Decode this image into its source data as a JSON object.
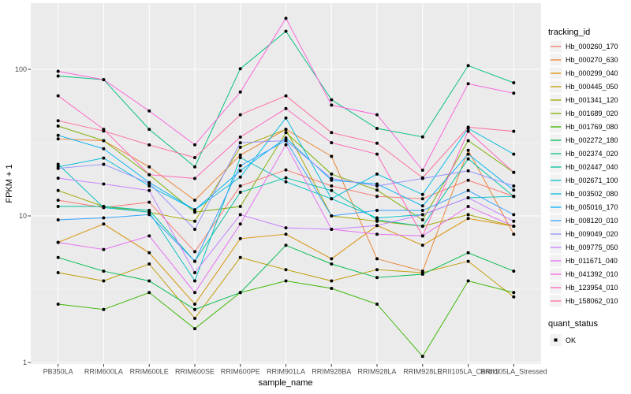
{
  "chart_data": {
    "type": "line",
    "title": "",
    "xlabel": "sample_name",
    "ylabel": "FPKM + 1",
    "yscale": "log10",
    "ylim": [
      1,
      280
    ],
    "ytick_values": [
      1,
      10,
      100
    ],
    "ytick_labels": [
      "1",
      "10",
      "100"
    ],
    "grid": "on",
    "panel_bg": "#EBEBEB",
    "grid_color": "#FFFFFF",
    "point_color": "#000000",
    "legend": {
      "title": "tracking_id",
      "position": "right"
    },
    "quant_legend": {
      "title": "quant_status",
      "items": [
        {
          "label": "OK",
          "marker": "black-point"
        }
      ]
    },
    "categories": [
      "PB350LA",
      "RRIM600LA",
      "RRIM600LE",
      "RRIM600SE",
      "RRIM600PE",
      "RRIM901LA",
      "RRIM928BA",
      "RRIM928LA",
      "RRIM928LE",
      "RRII105LA_Control",
      "RRII105LA_Stressed"
    ],
    "series": [
      {
        "name": "Hb_000260_170",
        "color": "#F8766D",
        "values": [
          12.8,
          11.4,
          12.4,
          5.7,
          16.0,
          20.6,
          16.0,
          13.6,
          13.1,
          17.5,
          13.6
        ]
      },
      {
        "name": "Hb_000270_630",
        "color": "#EA8331",
        "values": [
          33.5,
          32.6,
          21.6,
          12.8,
          26.0,
          39.0,
          25.5,
          5.1,
          4.2,
          28.0,
          7.5
        ]
      },
      {
        "name": "Hb_000299_040",
        "color": "#D89000",
        "values": [
          6.6,
          8.8,
          5.6,
          2.5,
          7.0,
          7.5,
          5.1,
          8.6,
          6.3,
          9.6,
          8.5
        ]
      },
      {
        "name": "Hb_000445_050",
        "color": "#C09B00",
        "values": [
          4.1,
          3.6,
          4.7,
          2.0,
          5.2,
          4.3,
          3.6,
          4.3,
          4.1,
          4.9,
          2.8
        ]
      },
      {
        "name": "Hb_001341_120",
        "color": "#A3A500",
        "values": [
          14.9,
          11.6,
          10.6,
          9.2,
          29.4,
          39.0,
          10.0,
          9.2,
          8.5,
          10.2,
          8.5
        ]
      },
      {
        "name": "Hb_001689_020",
        "color": "#7CAE00",
        "values": [
          41.0,
          32.6,
          19.1,
          10.6,
          11.6,
          37.0,
          19.3,
          15.0,
          9.4,
          32.6,
          19.8
        ]
      },
      {
        "name": "Hb_001769_080",
        "color": "#39B600",
        "values": [
          2.5,
          2.3,
          3.0,
          1.7,
          3.0,
          3.6,
          3.2,
          2.5,
          1.1,
          3.6,
          3.0
        ]
      },
      {
        "name": "Hb_002272_180",
        "color": "#00BB4E",
        "values": [
          5.2,
          4.2,
          3.6,
          2.3,
          3.0,
          6.3,
          4.7,
          3.8,
          4.0,
          5.6,
          4.2
        ]
      },
      {
        "name": "Hb_002374_020",
        "color": "#00BF7D",
        "values": [
          90.0,
          85.0,
          39.0,
          21.6,
          101.0,
          182.0,
          62.0,
          39.5,
          34.6,
          106.0,
          81.0
        ]
      },
      {
        "name": "Hb_002447_040",
        "color": "#00C1A3",
        "values": [
          11.6,
          11.6,
          10.9,
          4.9,
          14.5,
          18.2,
          14.9,
          9.4,
          8.5,
          24.5,
          13.6
        ]
      },
      {
        "name": "Hb_002671_100",
        "color": "#00BFC4",
        "values": [
          22.5,
          11.4,
          10.6,
          3.6,
          25.0,
          17.1,
          13.1,
          9.7,
          10.2,
          13.3,
          13.6
        ]
      },
      {
        "name": "Hb_003502_080",
        "color": "#00BAE0",
        "values": [
          21.6,
          24.8,
          16.0,
          11.0,
          18.4,
          46.6,
          13.1,
          19.3,
          14.0,
          39.5,
          26.4
        ]
      },
      {
        "name": "Hb_005016_170",
        "color": "#00B0F6",
        "values": [
          35.5,
          28.7,
          16.9,
          11.0,
          20.3,
          34.0,
          17.5,
          16.5,
          11.7,
          26.4,
          15.0
        ]
      },
      {
        "name": "Hb_008120_010",
        "color": "#35A2FF",
        "values": [
          9.4,
          9.7,
          10.2,
          4.9,
          22.0,
          32.6,
          10.0,
          10.9,
          10.9,
          14.9,
          10.2
        ]
      },
      {
        "name": "Hb_009049_020",
        "color": "#9590FF",
        "values": [
          21.1,
          22.5,
          16.7,
          8.1,
          31.6,
          32.6,
          18.0,
          16.0,
          18.0,
          20.3,
          16.0
        ]
      },
      {
        "name": "Hb_009775_050",
        "color": "#C77CFF",
        "values": [
          18.1,
          16.5,
          14.9,
          4.1,
          10.2,
          8.3,
          8.1,
          8.6,
          10.2,
          13.3,
          9.2
        ]
      },
      {
        "name": "Hb_011671_040",
        "color": "#E76BF3",
        "values": [
          6.6,
          5.9,
          7.3,
          3.0,
          8.8,
          30.6,
          8.1,
          7.5,
          7.3,
          11.6,
          8.5
        ]
      },
      {
        "name": "Hb_041392_010",
        "color": "#FA62DB",
        "values": [
          97.0,
          85.0,
          52.0,
          30.6,
          70.0,
          223.0,
          57.0,
          49.0,
          20.5,
          79.7,
          68.7
        ]
      },
      {
        "name": "Hb_123954_010",
        "color": "#FF62BC",
        "values": [
          66.0,
          39.0,
          19.1,
          18.0,
          34.5,
          54.0,
          31.6,
          26.4,
          7.3,
          37.8,
          19.8
        ]
      },
      {
        "name": "Hb_158062_010",
        "color": "#FF6A98",
        "values": [
          44.6,
          38.0,
          30.5,
          25.0,
          49.0,
          66.0,
          37.0,
          31.3,
          18.2,
          40.3,
          37.8
        ]
      }
    ]
  }
}
